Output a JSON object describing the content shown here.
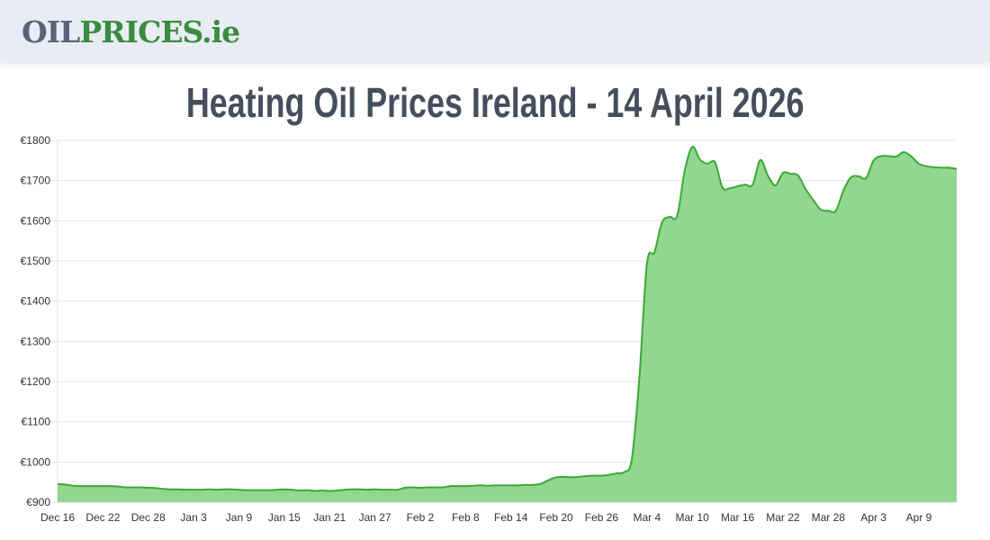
{
  "header": {
    "logo_part1": "OIL",
    "logo_part2": "PRICES.ie"
  },
  "page_title": "Heating Oil Prices Ireland - 14 April 2026",
  "colors": {
    "line": "#3aaa35",
    "fill": "#92d690",
    "grid": "#e6e6e6",
    "title": "#444e5c",
    "logo_grey": "#5a6478",
    "logo_green": "#3a8c3e"
  },
  "chart_data": {
    "type": "area",
    "title": "",
    "xlabel": "",
    "ylabel": "",
    "ylim": [
      900,
      1800
    ],
    "grid": true,
    "y_ticks": [
      "€900",
      "€1000",
      "€1100",
      "€1200",
      "€1300",
      "€1400",
      "€1500",
      "€1600",
      "€1700",
      "€1800"
    ],
    "y_tick_values": [
      900,
      1000,
      1100,
      1200,
      1300,
      1400,
      1500,
      1600,
      1700,
      1800
    ],
    "x_ticks": [
      "Dec 16",
      "Dec 22",
      "Dec 28",
      "Jan 3",
      "Jan 9",
      "Jan 15",
      "Jan 21",
      "Jan 27",
      "Feb 2",
      "Feb 8",
      "Feb 14",
      "Feb 20",
      "Feb 26",
      "Mar 4",
      "Mar 10",
      "Mar 16",
      "Mar 22",
      "Mar 28",
      "Apr 3",
      "Apr 9"
    ],
    "dates": [
      "Dec 16",
      "Dec 17",
      "Dec 18",
      "Dec 19",
      "Dec 20",
      "Dec 21",
      "Dec 22",
      "Dec 23",
      "Dec 24",
      "Dec 25",
      "Dec 26",
      "Dec 27",
      "Dec 28",
      "Dec 29",
      "Dec 30",
      "Dec 31",
      "Jan 1",
      "Jan 2",
      "Jan 3",
      "Jan 4",
      "Jan 5",
      "Jan 6",
      "Jan 7",
      "Jan 8",
      "Jan 9",
      "Jan 10",
      "Jan 11",
      "Jan 12",
      "Jan 13",
      "Jan 14",
      "Jan 15",
      "Jan 16",
      "Jan 17",
      "Jan 18",
      "Jan 19",
      "Jan 20",
      "Jan 21",
      "Jan 22",
      "Jan 23",
      "Jan 24",
      "Jan 25",
      "Jan 26",
      "Jan 27",
      "Jan 28",
      "Jan 29",
      "Jan 30",
      "Jan 31",
      "Feb 1",
      "Feb 2",
      "Feb 3",
      "Feb 4",
      "Feb 5",
      "Feb 6",
      "Feb 7",
      "Feb 8",
      "Feb 9",
      "Feb 10",
      "Feb 11",
      "Feb 12",
      "Feb 13",
      "Feb 14",
      "Feb 15",
      "Feb 16",
      "Feb 17",
      "Feb 18",
      "Feb 19",
      "Feb 20",
      "Feb 21",
      "Feb 22",
      "Feb 23",
      "Feb 24",
      "Feb 25",
      "Feb 26",
      "Feb 27",
      "Feb 28",
      "Mar 1",
      "Mar 2",
      "Mar 3",
      "Mar 4",
      "Mar 5",
      "Mar 6",
      "Mar 7",
      "Mar 8",
      "Mar 9",
      "Mar 10",
      "Mar 11",
      "Mar 12",
      "Mar 13",
      "Mar 14",
      "Mar 15",
      "Mar 16",
      "Mar 17",
      "Mar 18",
      "Mar 19",
      "Mar 20",
      "Mar 21",
      "Mar 22",
      "Mar 23",
      "Mar 24",
      "Mar 25",
      "Mar 26",
      "Mar 27",
      "Mar 28",
      "Mar 29",
      "Mar 30",
      "Mar 31",
      "Apr 1",
      "Apr 2",
      "Apr 3",
      "Apr 4",
      "Apr 5",
      "Apr 6",
      "Apr 7",
      "Apr 8",
      "Apr 9",
      "Apr 10",
      "Apr 11",
      "Apr 12",
      "Apr 13",
      "Apr 14"
    ],
    "values": [
      945,
      944,
      941,
      940,
      940,
      940,
      940,
      940,
      939,
      937,
      937,
      937,
      936,
      935,
      933,
      932,
      932,
      931,
      931,
      931,
      932,
      931,
      932,
      932,
      931,
      930,
      930,
      930,
      930,
      931,
      932,
      931,
      929,
      930,
      928,
      929,
      928,
      929,
      931,
      932,
      932,
      931,
      932,
      931,
      931,
      931,
      936,
      937,
      936,
      937,
      937,
      937,
      940,
      940,
      940,
      941,
      942,
      941,
      942,
      942,
      942,
      942,
      943,
      943,
      946,
      955,
      962,
      963,
      962,
      963,
      965,
      966,
      966,
      968,
      972,
      975,
      1007,
      1209,
      1493,
      1522,
      1596,
      1610,
      1612,
      1724,
      1784,
      1753,
      1742,
      1746,
      1683,
      1681,
      1686,
      1690,
      1690,
      1751,
      1713,
      1688,
      1719,
      1717,
      1713,
      1679,
      1652,
      1628,
      1625,
      1625,
      1675,
      1708,
      1711,
      1706,
      1750,
      1761,
      1761,
      1760,
      1771,
      1760,
      1742,
      1736,
      1733,
      1732,
      1732,
      1729
    ]
  }
}
